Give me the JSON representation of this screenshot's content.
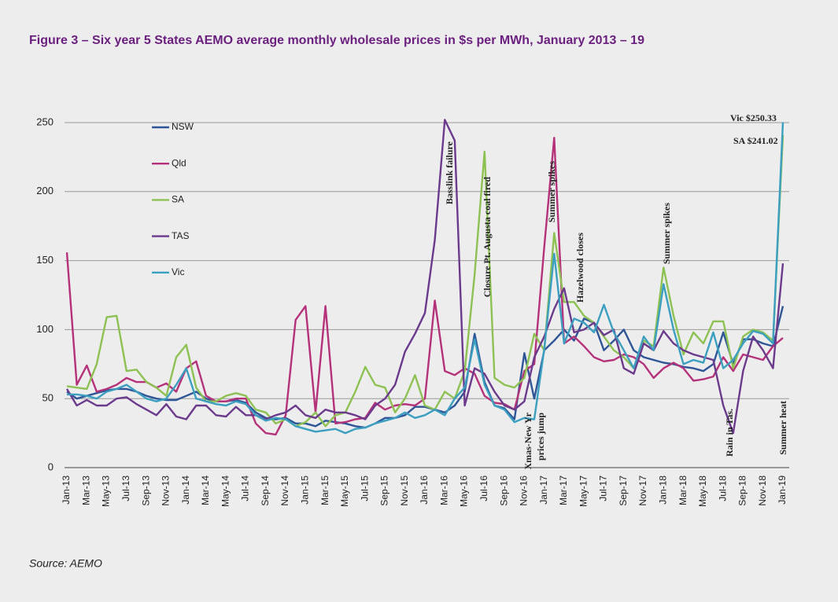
{
  "chart_data": {
    "type": "line",
    "title": "Figure 3 – Six year 5 States AEMO average monthly wholesale prices in $s per MWh, January 2013 – 19",
    "source": "Source: AEMO",
    "categories": [
      "Jan-13",
      null,
      "Mar-13",
      null,
      "May-13",
      null,
      "Jul-13",
      null,
      "Sep-13",
      null,
      "Nov-13",
      null,
      "Jan-14",
      null,
      "Mar-14",
      null,
      "May-14",
      null,
      "Jul-14",
      null,
      "Sep-14",
      null,
      "Nov-14",
      null,
      "Jan-15",
      null,
      "Mar-15",
      null,
      "May-15",
      null,
      "Jul-15",
      null,
      "Sep-15",
      null,
      "Nov-15",
      null,
      "Jan-16",
      null,
      "Mar-16",
      null,
      "May-16",
      null,
      "Jul-16",
      null,
      "Sep-16",
      null,
      "Nov-16",
      null,
      "Jan-17",
      null,
      "Mar-17",
      null,
      "May-17",
      null,
      "Jul-17",
      null,
      "Sep-17",
      null,
      "Nov-17",
      null,
      "Jan-18",
      null,
      "Mar-18",
      null,
      "May-18",
      null,
      "Jul-18",
      null,
      "Sep-18",
      null,
      "Nov-18",
      null,
      "Jan-19"
    ],
    "series": [
      {
        "name": "NSW",
        "color": "#2e5597",
        "values": [
          55,
          50,
          52,
          54,
          56,
          57,
          57,
          55,
          52,
          50,
          49,
          49,
          52,
          55,
          50,
          48,
          48,
          49,
          47,
          40,
          36,
          35,
          36,
          32,
          32,
          30,
          34,
          33,
          32,
          30,
          29,
          32,
          36,
          36,
          38,
          44,
          44,
          42,
          40,
          45,
          55,
          97,
          62,
          45,
          43,
          35,
          83,
          50,
          85,
          92,
          100,
          92,
          108,
          105,
          85,
          92,
          100,
          85,
          80,
          78,
          76,
          75,
          73,
          72,
          70,
          75,
          98,
          75,
          93,
          93,
          90,
          88,
          117
        ]
      },
      {
        "name": "Qld",
        "color": "#b5317a",
        "values": [
          156,
          60,
          74,
          55,
          57,
          60,
          65,
          62,
          62,
          58,
          61,
          55,
          72,
          77,
          52,
          48,
          48,
          50,
          50,
          32,
          25,
          24,
          38,
          107,
          117,
          40,
          117,
          32,
          33,
          35,
          36,
          47,
          42,
          45,
          46,
          45,
          50,
          121,
          70,
          67,
          72,
          68,
          52,
          47,
          46,
          42,
          70,
          75,
          160,
          239,
          90,
          95,
          88,
          80,
          77,
          78,
          82,
          80,
          75,
          65,
          72,
          76,
          72,
          63,
          64,
          66,
          80,
          70,
          82,
          80,
          78,
          88,
          94
        ]
      },
      {
        "name": "SA",
        "color": "#8dc152",
        "values": [
          59,
          58,
          57,
          75,
          109,
          110,
          70,
          71,
          62,
          58,
          52,
          80,
          89,
          58,
          48,
          48,
          52,
          54,
          52,
          42,
          40,
          32,
          35,
          30,
          33,
          40,
          30,
          38,
          40,
          55,
          73,
          60,
          58,
          40,
          50,
          67,
          45,
          42,
          55,
          50,
          70,
          140,
          229,
          65,
          60,
          58,
          65,
          97,
          85,
          170,
          120,
          120,
          110,
          105,
          95,
          85,
          80,
          72,
          92,
          88,
          145,
          110,
          82,
          98,
          90,
          106,
          106,
          72,
          95,
          100,
          98,
          92,
          241.02
        ]
      },
      {
        "name": "TAS",
        "color": "#6b3a8c",
        "values": [
          57,
          45,
          49,
          45,
          45,
          50,
          51,
          46,
          42,
          38,
          46,
          37,
          35,
          45,
          45,
          38,
          37,
          44,
          38,
          38,
          35,
          38,
          40,
          45,
          38,
          36,
          42,
          40,
          40,
          38,
          35,
          45,
          50,
          60,
          84,
          97,
          112,
          165,
          252,
          237,
          45,
          72,
          68,
          55,
          45,
          42,
          48,
          80,
          95,
          115,
          130,
          98,
          100,
          105,
          96,
          100,
          72,
          68,
          90,
          85,
          99,
          90,
          85,
          82,
          80,
          78,
          45,
          25,
          70,
          95,
          85,
          72,
          148
        ]
      },
      {
        "name": "Vic",
        "color": "#3a9fc0",
        "values": [
          53,
          53,
          52,
          50,
          55,
          57,
          60,
          55,
          50,
          48,
          50,
          60,
          72,
          50,
          48,
          46,
          45,
          48,
          46,
          38,
          34,
          36,
          35,
          30,
          28,
          26,
          27,
          28,
          25,
          28,
          29,
          32,
          34,
          36,
          40,
          36,
          38,
          42,
          38,
          50,
          58,
          93,
          60,
          45,
          42,
          33,
          36,
          35,
          86,
          155,
          90,
          108,
          105,
          98,
          118,
          98,
          85,
          72,
          95,
          85,
          133,
          100,
          75,
          78,
          76,
          98,
          72,
          78,
          90,
          99,
          97,
          90,
          250.33
        ]
      }
    ],
    "annotations": [
      "Basslink failure",
      "Closure Pt. Augusta coal fired",
      "Summer spikes",
      "Hazelwood closes",
      "Summer spikes",
      "Xmas-New Yr",
      "prices jump",
      "Rain in Tas.",
      "Summer heat",
      "Vic $250.33",
      "SA $241.02"
    ],
    "ylim": [
      0,
      250
    ],
    "yticks": [
      0,
      50,
      100,
      150,
      200,
      250
    ],
    "grid": true,
    "legend": "upper left"
  }
}
